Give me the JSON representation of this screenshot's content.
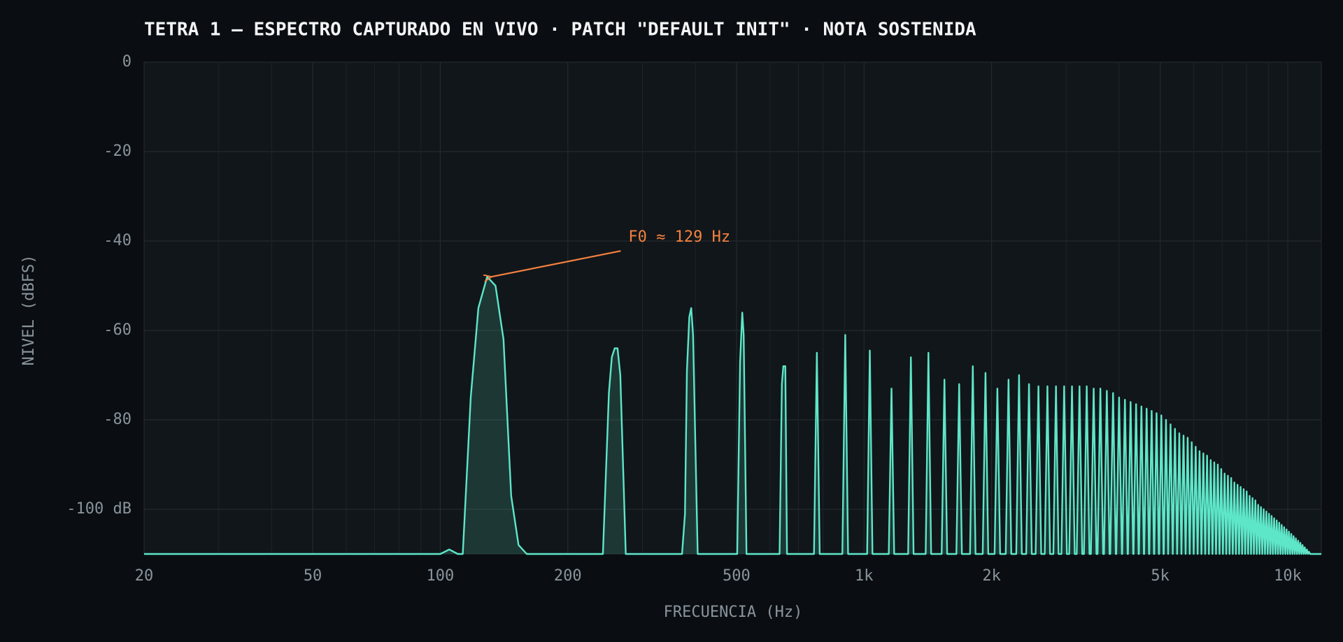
{
  "chart_data": {
    "type": "line",
    "title": "TETRA 1 — ESPECTRO CAPTURADO EN VIVO · PATCH \"DEFAULT INIT\" · NOTA SOSTENIDA",
    "xlabel": "FRECUENCIA (Hz)",
    "ylabel": "NIVEL (dBFS)",
    "xscale": "log",
    "xlim": [
      20,
      12000
    ],
    "ylim": [
      -110,
      0
    ],
    "xticks": [
      20,
      50,
      100,
      200,
      500,
      {
        "value": 1000,
        "label": "1k"
      },
      {
        "value": 2000,
        "label": "2k"
      },
      {
        "value": 5000,
        "label": "5k"
      },
      {
        "value": 10000,
        "label": "10k"
      }
    ],
    "xminorticks": [
      30,
      40,
      60,
      70,
      80,
      90,
      300,
      400,
      600,
      700,
      800,
      900,
      3000,
      4000,
      6000,
      7000,
      8000,
      9000
    ],
    "yticks": [
      0,
      -20,
      -40,
      -60,
      -80,
      {
        "value": -100,
        "label": "-100 dB"
      }
    ],
    "grid": true,
    "color": "#5ee6c8",
    "x": [
      20,
      100,
      105,
      110,
      113,
      118,
      123,
      129,
      135,
      141,
      147,
      153,
      160,
      242,
      250,
      254,
      258,
      262,
      266,
      274,
      372,
      378,
      382,
      387,
      391,
      395,
      405,
      502,
      510,
      516,
      520,
      528,
      632,
      640,
      645,
      652,
      658,
      762,
      774,
      786,
      889,
      903,
      917,
      1017,
      1032,
      1047,
      1144,
      1161,
      1178,
      1271,
      1290,
      1309,
      1398,
      1419,
      1440,
      1525,
      1548,
      1571,
      1652,
      1677,
      1702,
      1779,
      1806,
      1833,
      1906,
      1935,
      1964,
      2033,
      2064,
      2095,
      2160,
      2193,
      2226,
      2287,
      2322,
      2357,
      2414,
      2451,
      2488,
      2541,
      2580,
      2619,
      2670,
      2709,
      2748,
      2798,
      2838,
      2878,
      2923,
      2967,
      3011,
      3050,
      3096,
      3142,
      3177,
      3225,
      3273,
      3304,
      3354,
      3404,
      3431,
      3483,
      3535,
      3558,
      3612,
      3666,
      3685,
      3741,
      3797,
      3812,
      3870,
      3928,
      3939,
      3999,
      4059,
      4068,
      4128,
      4188,
      4197,
      4257,
      4317,
      4326,
      4386,
      4446,
      4455,
      4515,
      4575,
      4584,
      4644,
      4704,
      4713,
      4773,
      4833,
      4842,
      4902,
      4962,
      4971,
      5031,
      5091,
      5100,
      5160,
      5220,
      5289,
      5353,
      5418,
      5482,
      5547,
      5611,
      5676,
      5740,
      5805,
      5869,
      5934,
      5998,
      6063,
      6127,
      6192,
      6256,
      6321,
      6385,
      6450,
      6514,
      6579,
      6643,
      6708,
      6772,
      6837,
      6901,
      6966,
      7030,
      7095,
      7159,
      7224,
      7288,
      7353,
      7417,
      7482,
      7546,
      7611,
      7675,
      7740,
      7804,
      7869,
      7933,
      7998,
      8062,
      8127,
      8191,
      8256,
      8320,
      8385,
      8449,
      8514,
      8578,
      8643,
      8707,
      8772,
      8836,
      8901,
      8965,
      9030,
      9094,
      9159,
      9223,
      9288,
      9352,
      9417,
      9481,
      9546,
      9610,
      9675,
      9739,
      9804,
      9868,
      9933,
      9997,
      10062,
      10126,
      10191,
      10255,
      10320,
      10384,
      10449,
      10513,
      10578,
      10642,
      10707,
      10771,
      10836,
      10900,
      10965,
      11029,
      11094,
      11158,
      11223,
      11287,
      12000
    ],
    "values": [
      -110,
      -110,
      -109,
      -110,
      -110,
      -75,
      -55,
      -48,
      -50,
      -62,
      -97,
      -108,
      -110,
      -110,
      -74,
      -66,
      -64,
      -64,
      -70,
      -110,
      -110,
      -101,
      -69,
      -57,
      -55,
      -61,
      -110,
      -110,
      -67,
      -56,
      -61,
      -110,
      -110,
      -72,
      -68,
      -68,
      -110,
      -110,
      -65,
      -110,
      -110,
      -61,
      -110,
      -110,
      -64.5,
      -110,
      -110,
      -73,
      -110,
      -110,
      -66,
      -110,
      -110,
      -65,
      -110,
      -110,
      -71,
      -110,
      -110,
      -72,
      -110,
      -110,
      -68,
      -110,
      -110,
      -69.5,
      -110,
      -110,
      -73,
      -110,
      -110,
      -71,
      -110,
      -110,
      -70,
      -110,
      -110,
      -72,
      -110,
      -110,
      -72.5,
      -110,
      -110,
      -72.5,
      -110,
      -110,
      -72.5,
      -110,
      -110,
      -72.5,
      -110,
      -110,
      -72.5,
      -110,
      -110,
      -72.5,
      -110,
      -110,
      -72.5,
      -110,
      -110,
      -73,
      -110,
      -110,
      -73,
      -110,
      -110,
      -73.5,
      -110,
      -110,
      -74,
      -110,
      -110,
      -75,
      -110,
      -110,
      -75.5,
      -110,
      -110,
      -76,
      -110,
      -110,
      -76.5,
      -110,
      -110,
      -77,
      -110,
      -110,
      -77.5,
      -110,
      -110,
      -78,
      -110,
      -110,
      -78.5,
      -110,
      -110,
      -79,
      -110,
      -110,
      -80,
      -110,
      -81,
      -110,
      -82,
      -110,
      -83,
      -110,
      -83.5,
      -110,
      -84,
      -110,
      -85,
      -110,
      -86,
      -110,
      -87,
      -110,
      -87.5,
      -110,
      -88,
      -110,
      -89,
      -110,
      -89.5,
      -110,
      -90,
      -110,
      -91,
      -110,
      -92,
      -110,
      -92.5,
      -110,
      -93,
      -110,
      -94,
      -110,
      -94.5,
      -110,
      -95,
      -110,
      -95.5,
      -110,
      -96,
      -110,
      -97,
      -110,
      -97.5,
      -110,
      -98,
      -110,
      -99,
      -110,
      -99.5,
      -110,
      -100,
      -110,
      -100.5,
      -110,
      -101,
      -110,
      -101.5,
      -110,
      -102,
      -110,
      -102.5,
      -110,
      -103,
      -110,
      -103.5,
      -110,
      -104,
      -110,
      -104.5,
      -110,
      -105,
      -110,
      -105.5,
      -110,
      -106,
      -110,
      -106.5,
      -110,
      -107,
      -110,
      -107.5,
      -110,
      -108,
      -110,
      -108.5,
      -110,
      -109,
      -110,
      -109.5,
      -110,
      -110
    ],
    "annotations": [
      {
        "text": "F0 ≈ 129 Hz",
        "x": 129,
        "y": -48,
        "color": "#f5813f"
      }
    ]
  }
}
